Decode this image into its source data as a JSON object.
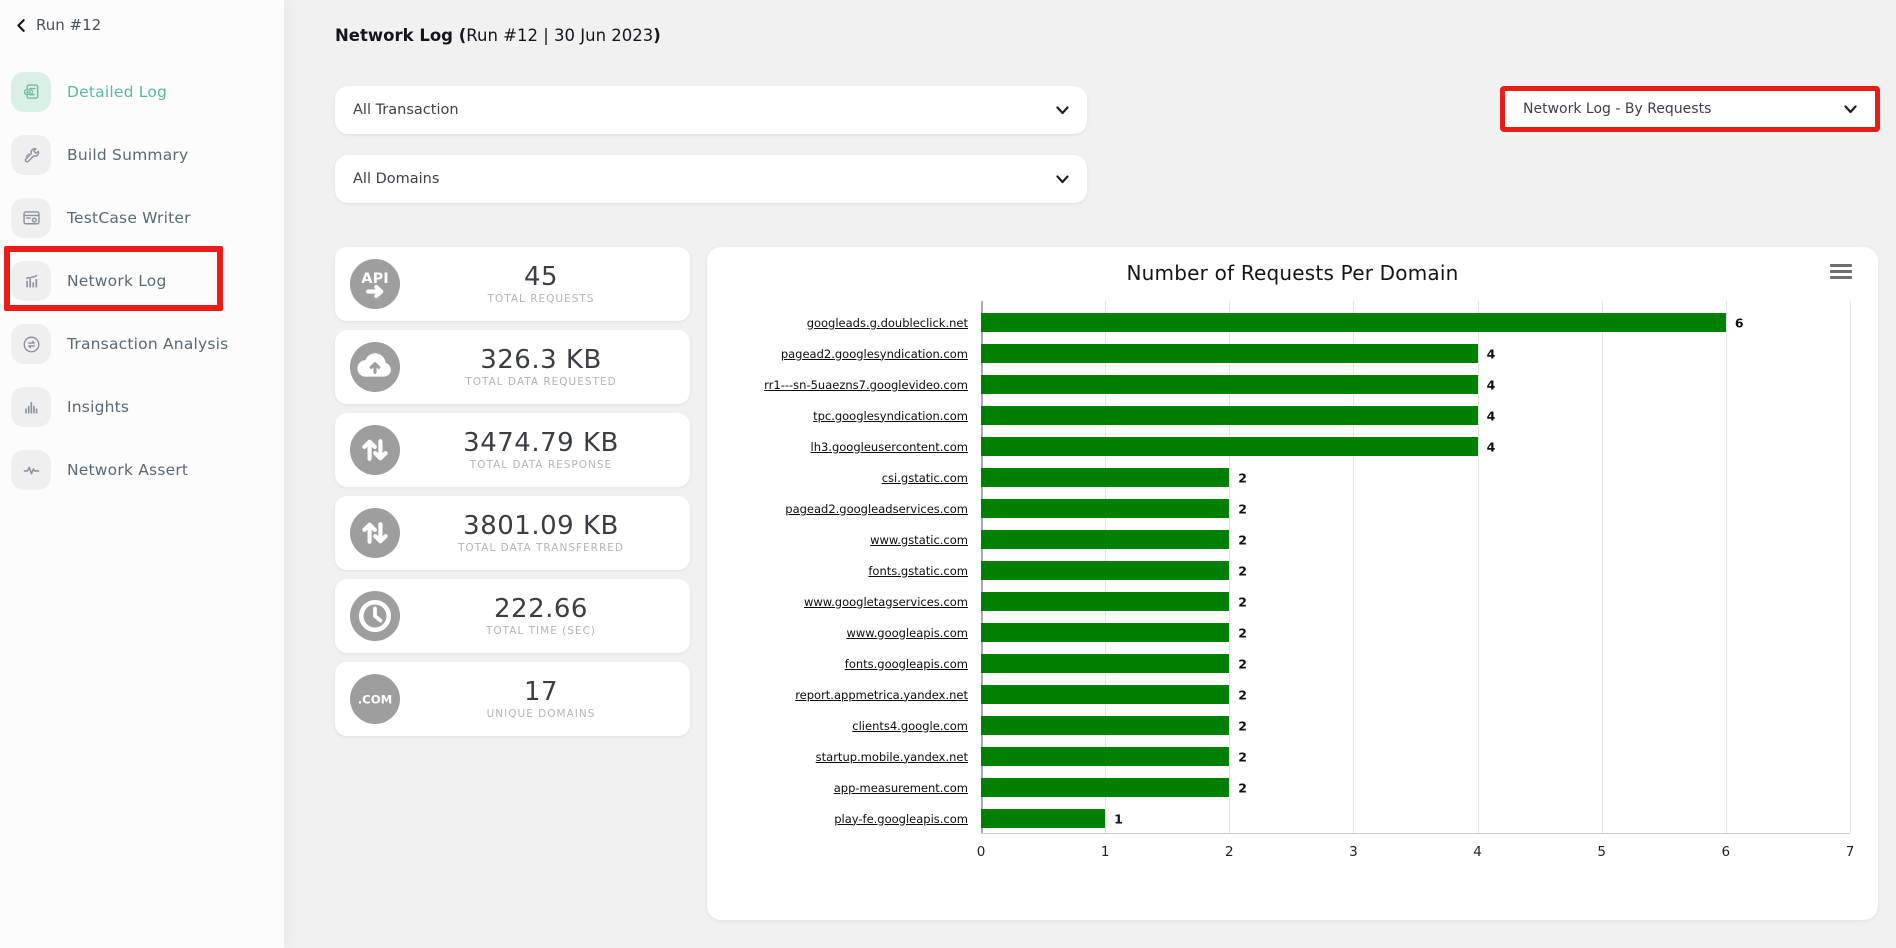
{
  "sidebar": {
    "back_label": "Run #12",
    "items": [
      {
        "label": "Detailed Log",
        "icon": "log-document-icon",
        "active": true,
        "annotated": false
      },
      {
        "label": "Build Summary",
        "icon": "wrench-icon",
        "active": false,
        "annotated": false
      },
      {
        "label": "TestCase Writer",
        "icon": "testcase-window-icon",
        "active": false,
        "annotated": false
      },
      {
        "label": "Network Log",
        "icon": "bar-chart-icon",
        "active": false,
        "annotated": true
      },
      {
        "label": "Transaction Analysis",
        "icon": "sync-arrows-icon",
        "active": false,
        "annotated": false
      },
      {
        "label": "Insights",
        "icon": "histogram-icon",
        "active": false,
        "annotated": false
      },
      {
        "label": "Network Assert",
        "icon": "pulse-icon",
        "active": false,
        "annotated": false
      }
    ]
  },
  "header": {
    "title_bold": "Network Log (",
    "title_regular": "Run #12 | 30 Jun 2023",
    "title_bold_close": ")"
  },
  "filters": {
    "transaction": "All Transaction",
    "domains": "All Domains",
    "view": "Network Log - By Requests"
  },
  "stats": [
    {
      "value": "45",
      "label": "TOTAL REQUESTS",
      "icon": "api-icon"
    },
    {
      "value": "326.3 KB",
      "label": "TOTAL DATA REQUESTED",
      "icon": "cloud-upload-icon"
    },
    {
      "value": "3474.79 KB",
      "label": "TOTAL DATA RESPONSE",
      "icon": "arrows-up-down-icon"
    },
    {
      "value": "3801.09 KB",
      "label": "TOTAL DATA TRANSFERRED",
      "icon": "arrows-up-down-icon"
    },
    {
      "value": "222.66",
      "label": "TOTAL TIME (SEC)",
      "icon": "clock-icon"
    },
    {
      "value": "17",
      "label": "UNIQUE DOMAINS",
      "icon": "dot-com-icon"
    }
  ],
  "chart_data": {
    "type": "bar",
    "orientation": "horizontal",
    "title": "Number of Requests Per Domain",
    "categories": [
      "googleads.g.doubleclick.net",
      "pagead2.googlesyndication.com",
      "rr1---sn-5uaezns7.googlevideo.com",
      "tpc.googlesyndication.com",
      "lh3.googleusercontent.com",
      "csi.gstatic.com",
      "pagead2.googleadservices.com",
      "www.gstatic.com",
      "fonts.gstatic.com",
      "www.googletagservices.com",
      "www.googleapis.com",
      "fonts.googleapis.com",
      "report.appmetrica.yandex.net",
      "clients4.google.com",
      "startup.mobile.yandex.net",
      "app-measurement.com",
      "play-fe.googleapis.com"
    ],
    "values": [
      6,
      4,
      4,
      4,
      4,
      2,
      2,
      2,
      2,
      2,
      2,
      2,
      2,
      2,
      2,
      2,
      1
    ],
    "xlim": [
      0,
      7
    ],
    "x_ticks": [
      0,
      1,
      2,
      3,
      4,
      5,
      6,
      7
    ],
    "bar_color": "#008000",
    "grid": true,
    "legend": "none"
  },
  "colors": {
    "annotation_red": "#e91d18",
    "active_teal": "#5cb89e",
    "bar_green": "#008000",
    "page_background": "#f1f1f2"
  }
}
